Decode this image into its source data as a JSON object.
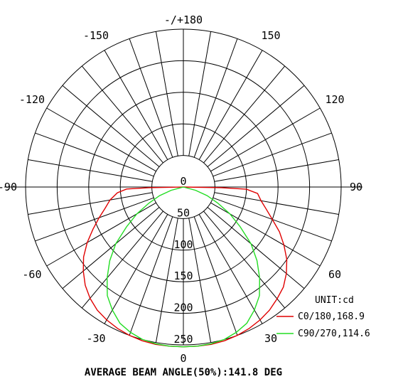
{
  "chart_data": {
    "type": "polar",
    "title": "",
    "unit_label": "UNIT:cd",
    "footer": "AVERAGE BEAM ANGLE(50%):141.8 DEG",
    "angle_ticks": [
      {
        "angle": 180,
        "label": "-/+180"
      },
      {
        "angle": 150,
        "label": "150"
      },
      {
        "angle": -150,
        "label": "-150"
      },
      {
        "angle": 120,
        "label": "120"
      },
      {
        "angle": -120,
        "label": "-120"
      },
      {
        "angle": 90,
        "label": "90"
      },
      {
        "angle": -90,
        "label": "-90"
      },
      {
        "angle": 60,
        "label": "60"
      },
      {
        "angle": -60,
        "label": "-60"
      },
      {
        "angle": 30,
        "label": "30"
      },
      {
        "angle": -30,
        "label": "-30"
      },
      {
        "angle": 0,
        "label": "0"
      }
    ],
    "radial_ticks": [
      0,
      50,
      100,
      150,
      200,
      250
    ],
    "rmax": 250,
    "angle_grid_step_deg": 10,
    "series": [
      {
        "name": "C0/180,168.9",
        "color": "#e00000",
        "points": [
          {
            "angle": -90,
            "r": 0
          },
          {
            "angle": -89,
            "r": 55
          },
          {
            "angle": -88,
            "r": 90
          },
          {
            "angle": -85,
            "r": 105
          },
          {
            "angle": -80,
            "r": 118
          },
          {
            "angle": -75,
            "r": 128
          },
          {
            "angle": -70,
            "r": 142
          },
          {
            "angle": -65,
            "r": 158
          },
          {
            "angle": -60,
            "r": 176
          },
          {
            "angle": -55,
            "r": 193
          },
          {
            "angle": -50,
            "r": 207
          },
          {
            "angle": -45,
            "r": 220
          },
          {
            "angle": -40,
            "r": 230
          },
          {
            "angle": -35,
            "r": 238
          },
          {
            "angle": -30,
            "r": 243
          },
          {
            "angle": -25,
            "r": 247
          },
          {
            "angle": -20,
            "r": 250
          },
          {
            "angle": -15,
            "r": 252
          },
          {
            "angle": -10,
            "r": 253
          },
          {
            "angle": -5,
            "r": 253
          },
          {
            "angle": 0,
            "r": 253
          },
          {
            "angle": 5,
            "r": 253
          },
          {
            "angle": 10,
            "r": 253
          },
          {
            "angle": 15,
            "r": 252
          },
          {
            "angle": 20,
            "r": 250
          },
          {
            "angle": 25,
            "r": 247
          },
          {
            "angle": 30,
            "r": 243
          },
          {
            "angle": 35,
            "r": 238
          },
          {
            "angle": 40,
            "r": 231
          },
          {
            "angle": 45,
            "r": 224
          },
          {
            "angle": 50,
            "r": 213
          },
          {
            "angle": 55,
            "r": 200
          },
          {
            "angle": 60,
            "r": 184
          },
          {
            "angle": 65,
            "r": 168
          },
          {
            "angle": 70,
            "r": 150
          },
          {
            "angle": 75,
            "r": 136
          },
          {
            "angle": 80,
            "r": 125
          },
          {
            "angle": 85,
            "r": 118
          },
          {
            "angle": 88,
            "r": 100
          },
          {
            "angle": 89,
            "r": 60
          },
          {
            "angle": 90,
            "r": 0
          }
        ]
      },
      {
        "name": "C90/270,114.6",
        "color": "#22dd22",
        "points": [
          {
            "angle": -80,
            "r": 0
          },
          {
            "angle": -75,
            "r": 20
          },
          {
            "angle": -70,
            "r": 40
          },
          {
            "angle": -65,
            "r": 60
          },
          {
            "angle": -60,
            "r": 85
          },
          {
            "angle": -55,
            "r": 110
          },
          {
            "angle": -50,
            "r": 140
          },
          {
            "angle": -45,
            "r": 165
          },
          {
            "angle": -40,
            "r": 188
          },
          {
            "angle": -35,
            "r": 210
          },
          {
            "angle": -30,
            "r": 225
          },
          {
            "angle": -25,
            "r": 238
          },
          {
            "angle": -20,
            "r": 245
          },
          {
            "angle": -15,
            "r": 250
          },
          {
            "angle": -10,
            "r": 252
          },
          {
            "angle": -5,
            "r": 253
          },
          {
            "angle": 0,
            "r": 253
          },
          {
            "angle": 5,
            "r": 253
          },
          {
            "angle": 10,
            "r": 252
          },
          {
            "angle": 15,
            "r": 250
          },
          {
            "angle": 20,
            "r": 245
          },
          {
            "angle": 25,
            "r": 238
          },
          {
            "angle": 30,
            "r": 225
          },
          {
            "angle": 35,
            "r": 210
          },
          {
            "angle": 40,
            "r": 188
          },
          {
            "angle": 45,
            "r": 165
          },
          {
            "angle": 50,
            "r": 140
          },
          {
            "angle": 55,
            "r": 110
          },
          {
            "angle": 60,
            "r": 85
          },
          {
            "angle": 65,
            "r": 60
          },
          {
            "angle": 70,
            "r": 40
          },
          {
            "angle": 75,
            "r": 20
          },
          {
            "angle": 80,
            "r": 0
          }
        ]
      }
    ]
  }
}
